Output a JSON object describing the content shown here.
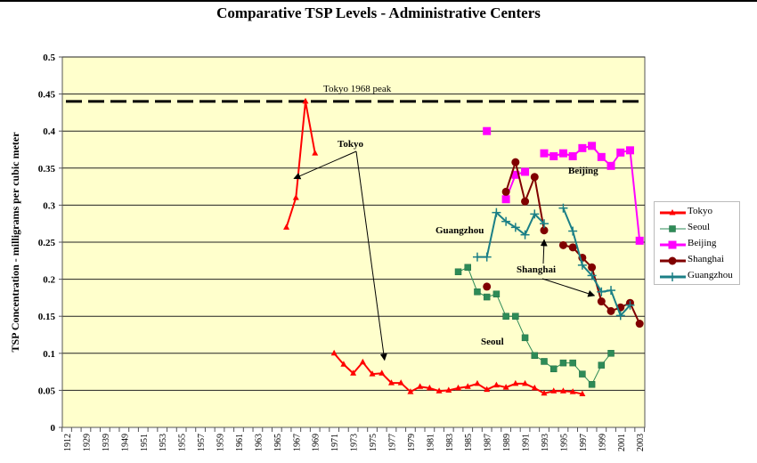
{
  "chart_data": {
    "type": "line",
    "title": "Comparative TSP Levels - Administrative Centers",
    "xlabel": "",
    "ylabel": "TSP Concentration - milligrams per cubic meter",
    "ylim": [
      0,
      0.5
    ],
    "yticks": [
      "0",
      "0.05",
      "0.1",
      "0.15",
      "0.2",
      "0.25",
      "0.3",
      "0.35",
      "0.4",
      "0.45",
      "0.5"
    ],
    "ytick_values": [
      0,
      0.05,
      0.1,
      0.15,
      0.2,
      0.25,
      0.3,
      0.35,
      0.4,
      0.45,
      0.5
    ],
    "grid": "horizontal",
    "categories": [
      "1912",
      "",
      "1929",
      "",
      "1939",
      "",
      "1949",
      "1950",
      "1951",
      "1952",
      "1953",
      "1954",
      "1955",
      "1956",
      "1957",
      "1958",
      "1959",
      "1960",
      "1961",
      "1962",
      "1963",
      "1964",
      "1965",
      "1966",
      "1967",
      "1968",
      "1969",
      "1970",
      "1971",
      "1972",
      "1973",
      "1974",
      "1975",
      "1976",
      "1977",
      "1978",
      "1979",
      "1980",
      "1981",
      "1982",
      "1983",
      "1984",
      "1985",
      "1986",
      "1987",
      "1988",
      "1989",
      "1990",
      "1991",
      "1992",
      "1993",
      "1994",
      "1995",
      "1996",
      "1997",
      "1998",
      "1999",
      "2000",
      "2001",
      "2002",
      "2003"
    ],
    "xtick_labels": [
      "1912",
      "1929",
      "1939",
      "1949",
      "1951",
      "1953",
      "1955",
      "1957",
      "1959",
      "1961",
      "1963",
      "1965",
      "1967",
      "1969",
      "1971",
      "1973",
      "1975",
      "1977",
      "1979",
      "1981",
      "1983",
      "1985",
      "1987",
      "1989",
      "1991",
      "1993",
      "1995",
      "1997",
      "1999",
      "2001",
      "2003"
    ],
    "legend_position": "right",
    "series": [
      {
        "name": "Tokyo",
        "color": "#ff0000",
        "marker": "triangle",
        "segments": [
          {
            "x": [
              1966,
              1967,
              1968,
              1969
            ],
            "y": [
              0.27,
              0.31,
              0.44,
              0.37
            ]
          },
          {
            "x": [
              1971,
              1972,
              1973,
              1974,
              1975,
              1976,
              1977,
              1978,
              1979,
              1980,
              1981,
              1982,
              1983,
              1984,
              1985,
              1986,
              1987,
              1988,
              1989,
              1990,
              1991,
              1992,
              1993,
              1994,
              1995,
              1996,
              1997
            ],
            "y": [
              0.1,
              0.085,
              0.073,
              0.088,
              0.072,
              0.073,
              0.06,
              0.06,
              0.048,
              0.055,
              0.053,
              0.049,
              0.05,
              0.053,
              0.055,
              0.059,
              0.051,
              0.057,
              0.054,
              0.059,
              0.059,
              0.053,
              0.046,
              0.049,
              0.049,
              0.048,
              0.045
            ]
          }
        ]
      },
      {
        "name": "Seoul",
        "color": "#2e8b57",
        "marker": "square-small",
        "segments": [
          {
            "x": [
              1984,
              1985,
              1986,
              1987,
              1988,
              1989,
              1990,
              1991,
              1992,
              1993,
              1994,
              1995,
              1996,
              1997,
              1998,
              1999,
              2000
            ],
            "y": [
              0.21,
              0.216,
              0.183,
              0.176,
              0.18,
              0.15,
              0.15,
              0.121,
              0.097,
              0.089,
              0.079,
              0.087,
              0.087,
              0.072,
              0.058,
              0.084,
              0.1
            ]
          }
        ]
      },
      {
        "name": "Beijing",
        "color": "#ff00ff",
        "marker": "square",
        "segments": [
          {
            "x": [
              1987
            ],
            "y": [
              0.4
            ]
          },
          {
            "x": [
              1989,
              1990,
              1991
            ],
            "y": [
              0.308,
              0.341,
              0.345
            ]
          },
          {
            "x": [
              1993,
              1994,
              1995,
              1996,
              1997,
              1998,
              1999,
              2000,
              2001,
              2002,
              2003
            ],
            "y": [
              0.37,
              0.366,
              0.37,
              0.366,
              0.377,
              0.38,
              0.365,
              0.353,
              0.371,
              0.374,
              0.252
            ]
          }
        ]
      },
      {
        "name": "Shanghai",
        "color": "#800000",
        "marker": "circle",
        "segments": [
          {
            "x": [
              1987
            ],
            "y": [
              0.19
            ]
          },
          {
            "x": [
              1989,
              1990,
              1991,
              1992,
              1993
            ],
            "y": [
              0.318,
              0.358,
              0.305,
              0.338,
              0.266
            ]
          },
          {
            "x": [
              1995,
              1996,
              1997,
              1998,
              1999,
              2000,
              2001,
              2002,
              2003
            ],
            "y": [
              0.246,
              0.243,
              0.229,
              0.216,
              0.17,
              0.157,
              0.162,
              0.168,
              0.14
            ]
          }
        ]
      },
      {
        "name": "Guangzhou",
        "color": "#1b7f86",
        "marker": "plus",
        "segments": [
          {
            "x": [
              1986,
              1987,
              1988,
              1989,
              1990,
              1991,
              1992,
              1993
            ],
            "y": [
              0.23,
              0.23,
              0.29,
              0.278,
              0.27,
              0.26,
              0.288,
              0.275
            ]
          },
          {
            "x": [
              1995,
              1996,
              1997,
              1998,
              1999,
              2000,
              2001,
              2002
            ],
            "y": [
              0.296,
              0.265,
              0.219,
              0.205,
              0.183,
              0.185,
              0.151,
              0.165
            ]
          }
        ]
      }
    ],
    "reference_line": {
      "label": "Tokyo 1968 peak",
      "value": 0.44
    },
    "annotations": [
      {
        "text": "Tokyo",
        "arrows_to": [
          {
            "year": 1967,
            "value": 0.336
          },
          {
            "year": 1976,
            "value": 0.091
          }
        ]
      },
      {
        "text": "Beijing"
      },
      {
        "text": "Guangzhou"
      },
      {
        "text": "Shanghai",
        "arrows_to": [
          {
            "year": 1993,
            "value": 0.258
          },
          {
            "year": 1999,
            "value": 0.178
          }
        ]
      },
      {
        "text": "Seoul"
      }
    ]
  }
}
